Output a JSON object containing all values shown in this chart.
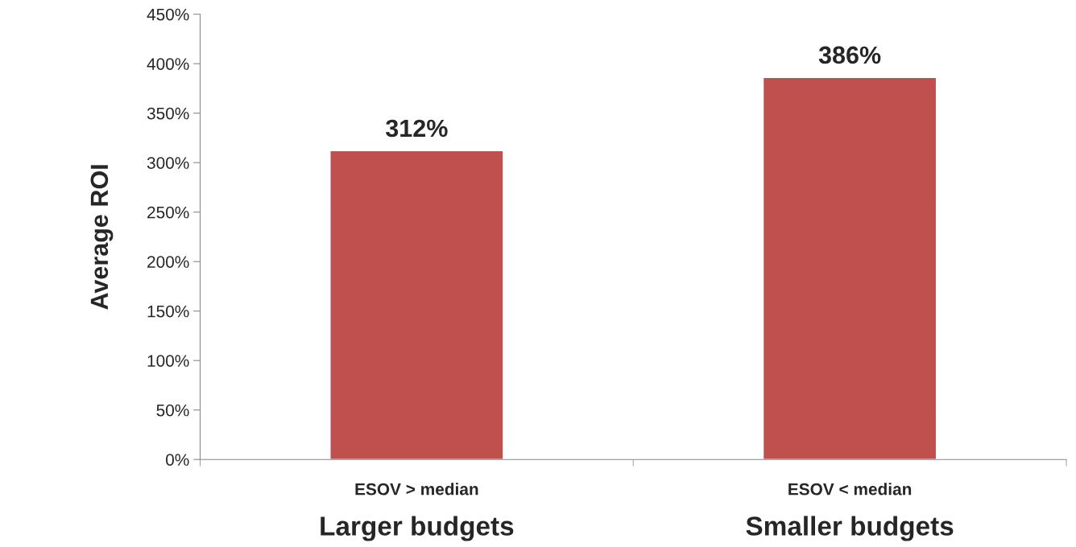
{
  "chart_data": {
    "type": "bar",
    "ylabel": "Average ROI",
    "categories": [
      "ESOV > median\nLarger budgets",
      "ESOV < median\nSmaller budgets"
    ],
    "values": [
      312,
      386
    ],
    "color": "#c0504d",
    "value_labels": [
      "312%",
      "386%"
    ],
    "ylim": [
      0,
      450
    ],
    "yticks": [
      {
        "value": 0,
        "label": "0%"
      },
      {
        "value": 50,
        "label": "50%"
      },
      {
        "value": 100,
        "label": "100%"
      },
      {
        "value": 150,
        "label": "150%"
      },
      {
        "value": 200,
        "label": "200%"
      },
      {
        "value": 250,
        "label": "250%"
      },
      {
        "value": 300,
        "label": "300%"
      },
      {
        "value": 350,
        "label": "350%"
      },
      {
        "value": 400,
        "label": "400%"
      },
      {
        "value": 450,
        "label": "450%"
      }
    ],
    "grid": false,
    "legend": false
  }
}
